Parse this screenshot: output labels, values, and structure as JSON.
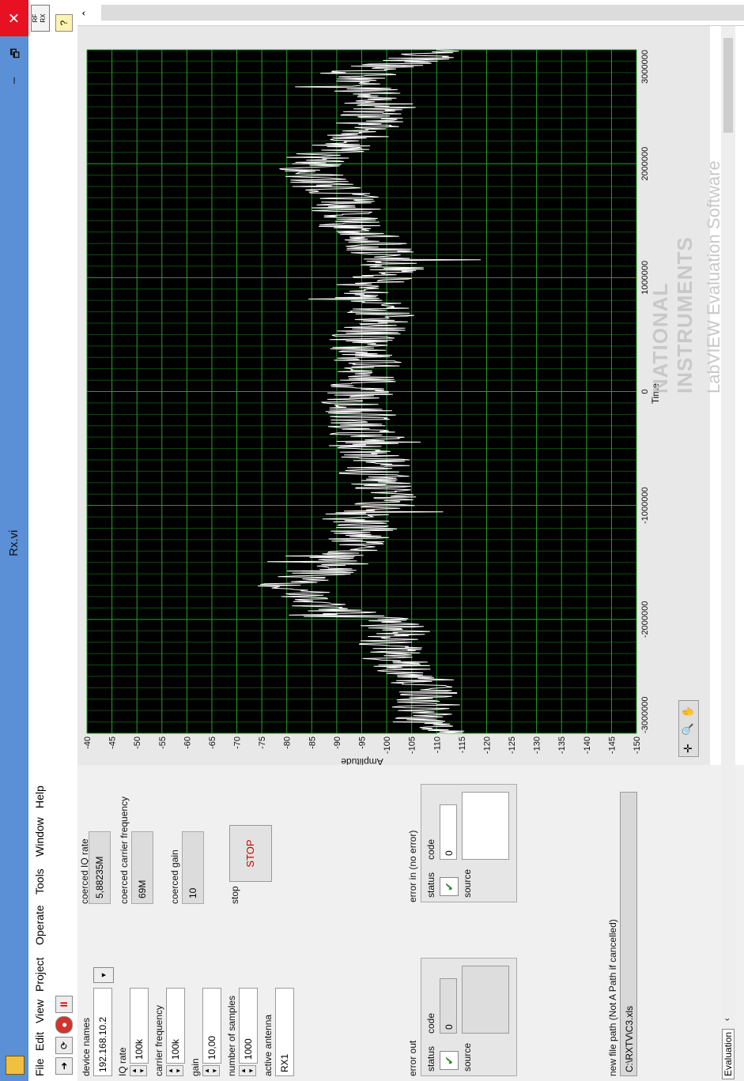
{
  "window": {
    "title": "Rx.vi",
    "min_glyph": "–",
    "restore_glyph": "🗗",
    "close_glyph": "✕"
  },
  "menu": [
    "File",
    "Edit",
    "View",
    "Project",
    "Operate",
    "Tools",
    "Window",
    "Help"
  ],
  "vi_icon": {
    "top": "RF",
    "bottom": "RX"
  },
  "controls": {
    "device_names": {
      "label": "device names",
      "value": "192.168.10.2"
    },
    "iq_rate": {
      "label": "IQ rate",
      "value": "100k"
    },
    "carrier_frequency": {
      "label": "carrier frequency",
      "value": "100k"
    },
    "gain": {
      "label": "gain",
      "value": "10,00"
    },
    "number_of_samples": {
      "label": "number of samples",
      "value": "1000"
    },
    "active_antenna": {
      "label": "active antenna",
      "value": "RX1"
    }
  },
  "indicators": {
    "coerced_iq_rate": {
      "label": "coerced IQ rate",
      "value": "5,88235M"
    },
    "coerced_carrier_frequency": {
      "label": "coerced carrier frequency",
      "value": "69M"
    },
    "coerced_gain": {
      "label": "coerced gain",
      "value": "10"
    }
  },
  "stop_button": {
    "label": "stop",
    "text": "STOP"
  },
  "error_out": {
    "label": "error out",
    "status_label": "status",
    "code_label": "code",
    "code_value": "0",
    "source_label": "source"
  },
  "error_in": {
    "label": "error in (no error)",
    "status_label": "status",
    "code_label": "code",
    "code_value": "0",
    "source_label": "source"
  },
  "file_path": {
    "label": "new file path (Not A Path if cancelled)",
    "value": "C:\\RXTV\\C3.xls"
  },
  "watermark": {
    "line1": "NATIONAL",
    "line2": "INSTRUMENTS",
    "line3": "LabVIEW Evaluation Software"
  },
  "status": {
    "evaluation": "Evaluation"
  },
  "colors": {
    "plot_background": "#000000",
    "grid": "#1f8f1f",
    "trace": "#ffffff",
    "title_bar": "#5b8fd6"
  },
  "chart_data": {
    "type": "line",
    "title": "",
    "xlabel": "Time",
    "ylabel": "Amplitude",
    "xlim": [
      -3000000,
      3000000
    ],
    "ylim": [
      -150,
      -40
    ],
    "grid": true,
    "xticks": [
      -3000000,
      -2000000,
      -1000000,
      0,
      1000000,
      2000000,
      3000000
    ],
    "xtick_labels": [
      "-3000000",
      "-2000000",
      "-1000000",
      "0",
      "1000000",
      "2000000",
      "3000000"
    ],
    "yticks": [
      -40,
      -45,
      -50,
      -55,
      -60,
      -65,
      -70,
      -75,
      -80,
      -85,
      -90,
      -95,
      -100,
      -105,
      -110,
      -115,
      -120,
      -125,
      -130,
      -135,
      -140,
      -145,
      -150
    ],
    "series": [
      {
        "x": [
          -3000000,
          -2900000,
          -2800000,
          -2700000,
          -2600000,
          -2500000,
          -2400000,
          -2300000,
          -2200000,
          -2100000,
          -2000000,
          -1900000,
          -1800000,
          -1700000,
          -1600000,
          -1500000,
          -1400000,
          -1300000,
          -1200000,
          -1100000,
          -1000000,
          -900000,
          -800000,
          -700000,
          -600000,
          -500000,
          -400000,
          -300000,
          -200000,
          -100000,
          0,
          100000,
          200000,
          300000,
          400000,
          500000,
          600000,
          700000,
          800000,
          900000,
          1000000,
          1100000,
          1200000,
          1300000,
          1400000,
          1500000,
          1600000,
          1700000,
          1800000,
          1900000,
          2000000,
          2100000,
          2200000,
          2300000,
          2400000,
          2500000,
          2600000,
          2700000,
          2800000,
          2900000,
          3000000
        ],
        "y": [
          -110,
          -108,
          -107,
          -109,
          -106,
          -108,
          -102,
          -100,
          -101,
          -103,
          -98,
          -88,
          -84,
          -80,
          -86,
          -90,
          -92,
          -94,
          -96,
          -92,
          -100,
          -101,
          -99,
          -97,
          -98,
          -95,
          -96,
          -94,
          -95,
          -93,
          -95,
          -96,
          -97,
          -96,
          -94,
          -96,
          -98,
          -99,
          -97,
          -95,
          -100,
          -101,
          -99,
          -98,
          -94,
          -92,
          -90,
          -93,
          -88,
          -85,
          -84,
          -89,
          -93,
          -95,
          -97,
          -99,
          -97,
          -95,
          -93,
          -105,
          -110
        ]
      }
    ]
  }
}
